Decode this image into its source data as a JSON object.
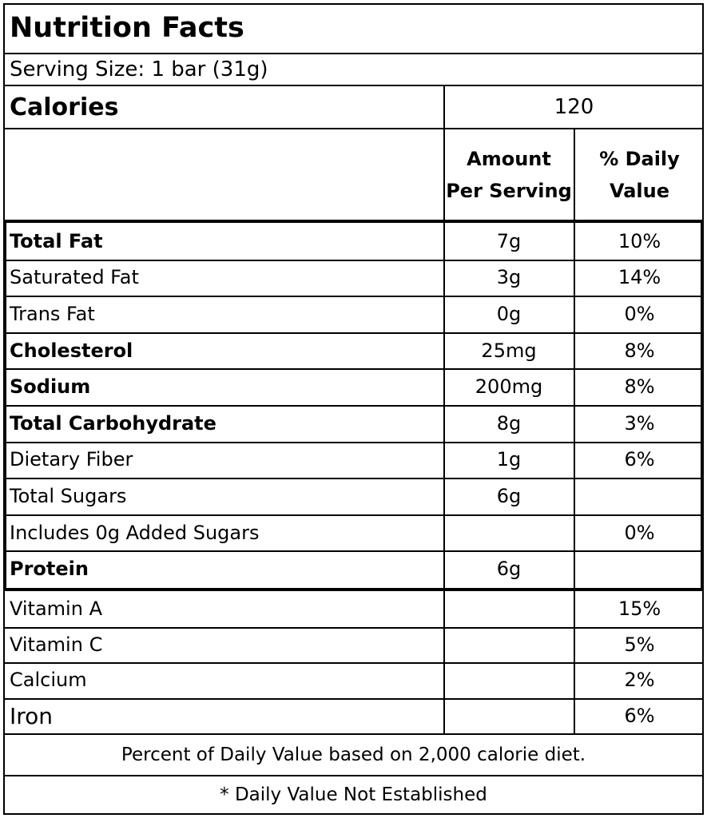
{
  "title": "Nutrition Facts",
  "serving_size": "Serving Size: 1 bar (31g)",
  "calories": {
    "label": "Calories",
    "value": "120"
  },
  "headers": {
    "amount_line1": "Amount",
    "amount_line2": "Per Serving",
    "dv_line1": "% Daily",
    "dv_line2": "Value"
  },
  "nutrients": [
    {
      "name": "Total Fat",
      "amount": "7g",
      "dv": "10%",
      "bold": true
    },
    {
      "name": "Saturated Fat",
      "amount": "3g",
      "dv": "14%",
      "bold": false
    },
    {
      "name": "Trans Fat",
      "amount": "0g",
      "dv": "0%",
      "bold": false
    },
    {
      "name": "Cholesterol",
      "amount": "25mg",
      "dv": "8%",
      "bold": true
    },
    {
      "name": "Sodium",
      "amount": "200mg",
      "dv": "8%",
      "bold": true
    },
    {
      "name": "Total Carbohydrate",
      "amount": "8g",
      "dv": "3%",
      "bold": true
    },
    {
      "name": "Dietary Fiber",
      "amount": "1g",
      "dv": "6%",
      "bold": false
    },
    {
      "name": "Total Sugars",
      "amount": "6g",
      "dv": "",
      "bold": false
    },
    {
      "name": "Includes 0g Added Sugars",
      "amount": "",
      "dv": "0%",
      "bold": false
    },
    {
      "name": "Protein",
      "amount": "6g",
      "dv": "",
      "bold": true
    }
  ],
  "vitamins": [
    {
      "name": "Vitamin A",
      "amount": "",
      "dv": "15%"
    },
    {
      "name": "Vitamin C",
      "amount": "",
      "dv": "5%"
    },
    {
      "name": "Calcium",
      "amount": "",
      "dv": "2%"
    },
    {
      "name": "Iron",
      "amount": "",
      "dv": "6%"
    }
  ],
  "footer": {
    "note": "Percent of Daily Value based on 2,000 calorie diet.",
    "asterisk": "* Daily Value Not Established"
  }
}
